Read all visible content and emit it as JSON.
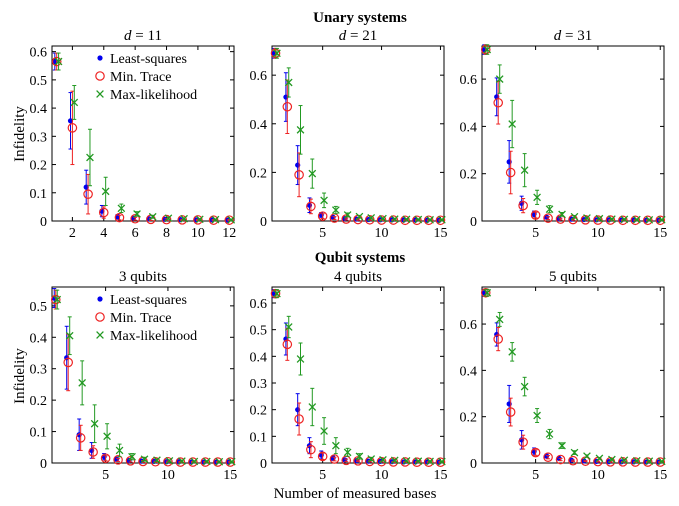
{
  "figure": {
    "xlabel": "Number of measured bases",
    "ylabel": "Infidelity",
    "group_titles": [
      "Unary systems",
      "Qubit systems"
    ]
  },
  "legend": {
    "items": [
      {
        "label": "Least-squares",
        "marker": "dot",
        "color": "#0000ee"
      },
      {
        "label": "Min. Trace",
        "marker": "circle",
        "color": "#ee2222"
      },
      {
        "label": "Max-likelihood",
        "marker": "x",
        "color": "#229922"
      }
    ]
  },
  "chart_data": [
    {
      "type": "scatter",
      "group": "Unary systems",
      "title": "d = 11",
      "title_var": "d",
      "title_val": "11",
      "xlabel": "",
      "ylabel": "Infidelity",
      "xlim": [
        0.7,
        12.3
      ],
      "ylim": [
        0,
        0.62
      ],
      "xticks": [
        2,
        4,
        6,
        8,
        10,
        12
      ],
      "yticks": [
        0,
        0.1,
        0.2,
        0.3,
        0.4,
        0.5,
        0.6
      ],
      "x": [
        1,
        2,
        3,
        4,
        5,
        6,
        7,
        8,
        9,
        10,
        11,
        12
      ],
      "series": [
        {
          "name": "Least-squares",
          "values": [
            0.565,
            0.355,
            0.12,
            0.035,
            0.015,
            0.01,
            0.008,
            0.006,
            0.005,
            0.004,
            0.004,
            0.003
          ],
          "errors": [
            0.03,
            0.1,
            0.06,
            0.02,
            0.008,
            0.005,
            0.004,
            0.003,
            0.002,
            0.002,
            0.002,
            0.002
          ]
        },
        {
          "name": "Min. Trace",
          "values": [
            0.565,
            0.33,
            0.095,
            0.03,
            0.012,
            0.008,
            0.006,
            0.005,
            0.004,
            0.004,
            0.003,
            0.003
          ],
          "errors": [
            0.03,
            0.13,
            0.07,
            0.02,
            0.008,
            0.005,
            0.004,
            0.003,
            0.002,
            0.002,
            0.002,
            0.002
          ]
        },
        {
          "name": "Max-likelihood",
          "values": [
            0.565,
            0.42,
            0.225,
            0.105,
            0.045,
            0.025,
            0.015,
            0.01,
            0.008,
            0.006,
            0.005,
            0.004
          ],
          "errors": [
            0.03,
            0.06,
            0.1,
            0.05,
            0.015,
            0.008,
            0.005,
            0.004,
            0.003,
            0.002,
            0.002,
            0.002
          ]
        }
      ]
    },
    {
      "type": "scatter",
      "group": "Unary systems",
      "title": "d = 21",
      "title_var": "d",
      "title_val": "21",
      "xlabel": "",
      "ylabel": "",
      "xlim": [
        0.7,
        15.3
      ],
      "ylim": [
        0,
        0.72
      ],
      "xticks": [
        5,
        10,
        15
      ],
      "yticks": [
        0,
        0.2,
        0.4,
        0.6
      ],
      "x": [
        1,
        2,
        3,
        4,
        5,
        6,
        7,
        8,
        9,
        10,
        11,
        12,
        13,
        14,
        15
      ],
      "series": [
        {
          "name": "Least-squares",
          "values": [
            0.69,
            0.51,
            0.23,
            0.065,
            0.025,
            0.015,
            0.01,
            0.008,
            0.006,
            0.005,
            0.005,
            0.004,
            0.004,
            0.003,
            0.003
          ],
          "errors": [
            0.02,
            0.1,
            0.08,
            0.03,
            0.01,
            0.006,
            0.004,
            0.003,
            0.002,
            0.002,
            0.002,
            0.002,
            0.002,
            0.002,
            0.002
          ]
        },
        {
          "name": "Min. Trace",
          "values": [
            0.69,
            0.47,
            0.19,
            0.06,
            0.02,
            0.012,
            0.008,
            0.006,
            0.005,
            0.004,
            0.004,
            0.003,
            0.003,
            0.003,
            0.003
          ],
          "errors": [
            0.02,
            0.11,
            0.09,
            0.03,
            0.01,
            0.006,
            0.004,
            0.003,
            0.002,
            0.002,
            0.002,
            0.002,
            0.002,
            0.002,
            0.002
          ]
        },
        {
          "name": "Max-likelihood",
          "values": [
            0.69,
            0.57,
            0.375,
            0.195,
            0.085,
            0.045,
            0.025,
            0.018,
            0.013,
            0.01,
            0.008,
            0.007,
            0.006,
            0.005,
            0.005
          ],
          "errors": [
            0.02,
            0.06,
            0.1,
            0.06,
            0.03,
            0.015,
            0.008,
            0.005,
            0.004,
            0.003,
            0.003,
            0.002,
            0.002,
            0.002,
            0.002
          ]
        }
      ]
    },
    {
      "type": "scatter",
      "group": "Unary systems",
      "title": "d = 31",
      "title_var": "d",
      "title_val": "31",
      "xlabel": "",
      "ylabel": "",
      "xlim": [
        0.7,
        15.3
      ],
      "ylim": [
        0,
        0.74
      ],
      "xticks": [
        5,
        10,
        15
      ],
      "yticks": [
        0,
        0.2,
        0.4,
        0.6
      ],
      "x": [
        1,
        2,
        3,
        4,
        5,
        6,
        7,
        8,
        9,
        10,
        11,
        12,
        13,
        14,
        15
      ],
      "series": [
        {
          "name": "Least-squares",
          "values": [
            0.725,
            0.525,
            0.25,
            0.075,
            0.03,
            0.016,
            0.01,
            0.008,
            0.006,
            0.005,
            0.005,
            0.004,
            0.004,
            0.003,
            0.003
          ],
          "errors": [
            0.02,
            0.08,
            0.09,
            0.03,
            0.012,
            0.006,
            0.004,
            0.003,
            0.002,
            0.002,
            0.002,
            0.002,
            0.002,
            0.002,
            0.002
          ]
        },
        {
          "name": "Min. Trace",
          "values": [
            0.725,
            0.5,
            0.205,
            0.065,
            0.025,
            0.012,
            0.008,
            0.006,
            0.005,
            0.004,
            0.004,
            0.003,
            0.003,
            0.003,
            0.003
          ],
          "errors": [
            0.02,
            0.09,
            0.09,
            0.03,
            0.012,
            0.006,
            0.004,
            0.003,
            0.002,
            0.002,
            0.002,
            0.002,
            0.002,
            0.002,
            0.002
          ]
        },
        {
          "name": "Max-likelihood",
          "values": [
            0.725,
            0.6,
            0.41,
            0.215,
            0.1,
            0.05,
            0.028,
            0.018,
            0.013,
            0.01,
            0.008,
            0.007,
            0.006,
            0.005,
            0.005
          ],
          "errors": [
            0.02,
            0.06,
            0.1,
            0.07,
            0.03,
            0.015,
            0.008,
            0.005,
            0.004,
            0.003,
            0.003,
            0.002,
            0.002,
            0.002,
            0.002
          ]
        }
      ]
    },
    {
      "type": "scatter",
      "group": "Qubit systems",
      "title": "3 qubits",
      "xlabel": "",
      "ylabel": "Infidelity",
      "xlim": [
        0.7,
        15.3
      ],
      "ylim": [
        0,
        0.56
      ],
      "xticks": [
        5,
        10,
        15
      ],
      "yticks": [
        0,
        0.1,
        0.2,
        0.3,
        0.4,
        0.5
      ],
      "x": [
        1,
        2,
        3,
        4,
        5,
        6,
        7,
        8,
        9,
        10,
        11,
        12,
        13,
        14,
        15
      ],
      "series": [
        {
          "name": "Least-squares",
          "values": [
            0.525,
            0.335,
            0.09,
            0.04,
            0.02,
            0.012,
            0.008,
            0.006,
            0.005,
            0.004,
            0.004,
            0.003,
            0.003,
            0.003,
            0.003
          ],
          "errors": [
            0.03,
            0.1,
            0.05,
            0.025,
            0.01,
            0.006,
            0.004,
            0.003,
            0.002,
            0.002,
            0.002,
            0.002,
            0.002,
            0.002,
            0.002
          ]
        },
        {
          "name": "Min. Trace",
          "values": [
            0.52,
            0.32,
            0.08,
            0.035,
            0.015,
            0.01,
            0.007,
            0.005,
            0.004,
            0.004,
            0.003,
            0.003,
            0.003,
            0.003,
            0.003
          ],
          "errors": [
            0.03,
            0.09,
            0.04,
            0.02,
            0.008,
            0.005,
            0.004,
            0.003,
            0.002,
            0.002,
            0.002,
            0.002,
            0.002,
            0.002,
            0.002
          ]
        },
        {
          "name": "Max-likelihood",
          "values": [
            0.52,
            0.405,
            0.255,
            0.125,
            0.085,
            0.04,
            0.02,
            0.012,
            0.009,
            0.007,
            0.006,
            0.005,
            0.005,
            0.004,
            0.004
          ],
          "errors": [
            0.03,
            0.06,
            0.07,
            0.06,
            0.04,
            0.02,
            0.01,
            0.006,
            0.004,
            0.003,
            0.003,
            0.002,
            0.002,
            0.002,
            0.002
          ]
        }
      ]
    },
    {
      "type": "scatter",
      "group": "Qubit systems",
      "title": "4 qubits",
      "xlabel": "",
      "ylabel": "",
      "xlim": [
        0.7,
        15.3
      ],
      "ylim": [
        0,
        0.66
      ],
      "xticks": [
        5,
        10,
        15
      ],
      "yticks": [
        0,
        0.1,
        0.2,
        0.3,
        0.4,
        0.5,
        0.6
      ],
      "x": [
        1,
        2,
        3,
        4,
        5,
        6,
        7,
        8,
        9,
        10,
        11,
        12,
        13,
        14,
        15
      ],
      "series": [
        {
          "name": "Least-squares",
          "values": [
            0.635,
            0.465,
            0.2,
            0.065,
            0.03,
            0.018,
            0.012,
            0.009,
            0.007,
            0.006,
            0.005,
            0.004,
            0.004,
            0.004,
            0.003
          ],
          "errors": [
            0.015,
            0.06,
            0.06,
            0.03,
            0.015,
            0.008,
            0.005,
            0.003,
            0.002,
            0.002,
            0.002,
            0.002,
            0.002,
            0.002,
            0.002
          ]
        },
        {
          "name": "Min. Trace",
          "values": [
            0.635,
            0.445,
            0.165,
            0.05,
            0.025,
            0.015,
            0.01,
            0.008,
            0.006,
            0.005,
            0.004,
            0.004,
            0.003,
            0.003,
            0.003
          ],
          "errors": [
            0.015,
            0.06,
            0.06,
            0.03,
            0.012,
            0.007,
            0.005,
            0.003,
            0.002,
            0.002,
            0.002,
            0.002,
            0.002,
            0.002,
            0.002
          ]
        },
        {
          "name": "Max-likelihood",
          "values": [
            0.635,
            0.51,
            0.39,
            0.21,
            0.12,
            0.065,
            0.04,
            0.025,
            0.015,
            0.012,
            0.01,
            0.008,
            0.007,
            0.006,
            0.005
          ],
          "errors": [
            0.015,
            0.04,
            0.06,
            0.07,
            0.05,
            0.03,
            0.015,
            0.01,
            0.006,
            0.004,
            0.003,
            0.003,
            0.002,
            0.002,
            0.002
          ]
        }
      ]
    },
    {
      "type": "scatter",
      "group": "Qubit systems",
      "title": "5 qubits",
      "xlabel": "",
      "ylabel": "",
      "xlim": [
        0.7,
        15.3
      ],
      "ylim": [
        0,
        0.76
      ],
      "xticks": [
        5,
        10,
        15
      ],
      "yticks": [
        0,
        0.2,
        0.4,
        0.6
      ],
      "x": [
        1,
        2,
        3,
        4,
        5,
        6,
        7,
        8,
        9,
        10,
        11,
        12,
        13,
        14,
        15
      ],
      "series": [
        {
          "name": "Least-squares",
          "values": [
            0.735,
            0.555,
            0.255,
            0.1,
            0.05,
            0.03,
            0.02,
            0.012,
            0.009,
            0.007,
            0.006,
            0.005,
            0.005,
            0.004,
            0.004
          ],
          "errors": [
            0.015,
            0.05,
            0.08,
            0.04,
            0.015,
            0.008,
            0.005,
            0.004,
            0.003,
            0.002,
            0.002,
            0.002,
            0.002,
            0.002,
            0.002
          ]
        },
        {
          "name": "Min. Trace",
          "values": [
            0.735,
            0.535,
            0.22,
            0.09,
            0.045,
            0.025,
            0.015,
            0.01,
            0.008,
            0.006,
            0.005,
            0.005,
            0.004,
            0.004,
            0.004
          ],
          "errors": [
            0.015,
            0.05,
            0.06,
            0.03,
            0.012,
            0.007,
            0.005,
            0.003,
            0.002,
            0.002,
            0.002,
            0.002,
            0.002,
            0.002,
            0.002
          ]
        },
        {
          "name": "Max-likelihood",
          "values": [
            0.735,
            0.62,
            0.48,
            0.33,
            0.205,
            0.125,
            0.075,
            0.045,
            0.03,
            0.02,
            0.015,
            0.012,
            0.01,
            0.008,
            0.007
          ],
          "errors": [
            0.015,
            0.03,
            0.04,
            0.04,
            0.03,
            0.02,
            0.012,
            0.008,
            0.005,
            0.004,
            0.003,
            0.003,
            0.002,
            0.002,
            0.002
          ]
        }
      ]
    }
  ]
}
